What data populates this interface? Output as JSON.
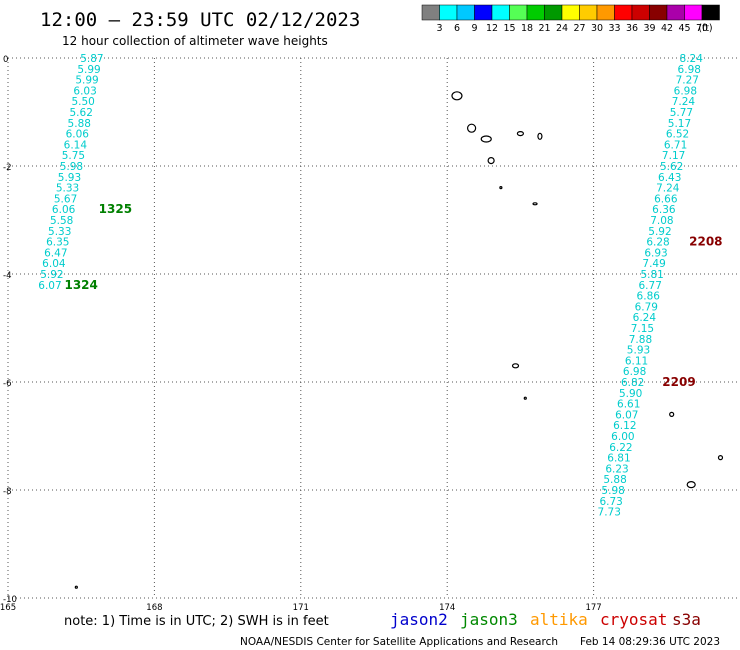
{
  "header": {
    "title": "12:00 — 23:59 UTC 02/12/2023",
    "subtitle": "12 hour collection of altimeter wave heights"
  },
  "colorbar": {
    "colors": [
      "#808080",
      "#00ffff",
      "#00c8ff",
      "#0000ff",
      "#00ffff",
      "#55ff55",
      "#00cc00",
      "#009900",
      "#ffff00",
      "#ffcc00",
      "#ff9900",
      "#ff0000",
      "#cc0000",
      "#880000",
      "#aa00aa",
      "#ff00ff",
      "#000000"
    ],
    "labels": [
      "3",
      "6",
      "9",
      "12",
      "15",
      "18",
      "21",
      "24",
      "27",
      "30",
      "33",
      "36",
      "39",
      "42",
      "45",
      "70"
    ],
    "unit": "(ft)"
  },
  "chart_data": {
    "type": "scatter",
    "xlabel": "",
    "ylabel": "",
    "xlim": [
      165,
      180
    ],
    "ylim": [
      -10,
      0
    ],
    "grid": true,
    "x_ticks": [
      "165",
      "168",
      "171",
      "174",
      "177"
    ],
    "y_ticks": [
      "0",
      "-2",
      "-4",
      "-6",
      "-8",
      "-10"
    ],
    "series": [
      {
        "name": "track west",
        "color": "#00cccc",
        "points": [
          {
            "x": 166.72,
            "y": 0.0,
            "v": "5.87"
          },
          {
            "x": 166.66,
            "y": -0.2,
            "v": "5.99"
          },
          {
            "x": 166.62,
            "y": -0.4,
            "v": "5.99"
          },
          {
            "x": 166.58,
            "y": -0.6,
            "v": "6.03"
          },
          {
            "x": 166.54,
            "y": -0.8,
            "v": "5.50"
          },
          {
            "x": 166.5,
            "y": -1.0,
            "v": "5.62"
          },
          {
            "x": 166.46,
            "y": -1.2,
            "v": "5.88"
          },
          {
            "x": 166.42,
            "y": -1.4,
            "v": "6.06"
          },
          {
            "x": 166.38,
            "y": -1.6,
            "v": "6.14"
          },
          {
            "x": 166.34,
            "y": -1.8,
            "v": "5.75"
          },
          {
            "x": 166.3,
            "y": -2.0,
            "v": "5.98"
          },
          {
            "x": 166.26,
            "y": -2.2,
            "v": "5.93"
          },
          {
            "x": 166.22,
            "y": -2.4,
            "v": "5.33"
          },
          {
            "x": 166.18,
            "y": -2.6,
            "v": "5.67"
          },
          {
            "x": 166.14,
            "y": -2.8,
            "v": "6.06"
          },
          {
            "x": 166.1,
            "y": -3.0,
            "v": "5.58"
          },
          {
            "x": 166.06,
            "y": -3.2,
            "v": "5.33"
          },
          {
            "x": 166.02,
            "y": -3.4,
            "v": "6.35"
          },
          {
            "x": 165.98,
            "y": -3.6,
            "v": "6.47"
          },
          {
            "x": 165.94,
            "y": -3.8,
            "v": "6.04"
          },
          {
            "x": 165.9,
            "y": -4.0,
            "v": "5.92"
          },
          {
            "x": 165.86,
            "y": -4.2,
            "v": "6.07"
          }
        ]
      },
      {
        "name": "track east",
        "color": "#00cccc",
        "points": [
          {
            "x": 179.0,
            "y": 0.0,
            "v": "8.24"
          },
          {
            "x": 178.96,
            "y": -0.2,
            "v": "6.98"
          },
          {
            "x": 178.92,
            "y": -0.4,
            "v": "7.27"
          },
          {
            "x": 178.88,
            "y": -0.6,
            "v": "6.98"
          },
          {
            "x": 178.84,
            "y": -0.8,
            "v": "7.24"
          },
          {
            "x": 178.8,
            "y": -1.0,
            "v": "5.77"
          },
          {
            "x": 178.76,
            "y": -1.2,
            "v": "5.17"
          },
          {
            "x": 178.72,
            "y": -1.4,
            "v": "6.52"
          },
          {
            "x": 178.68,
            "y": -1.6,
            "v": "6.71"
          },
          {
            "x": 178.64,
            "y": -1.8,
            "v": "7.17"
          },
          {
            "x": 178.6,
            "y": -2.0,
            "v": "5.62"
          },
          {
            "x": 178.56,
            "y": -2.2,
            "v": "6.43"
          },
          {
            "x": 178.52,
            "y": -2.4,
            "v": "7.24"
          },
          {
            "x": 178.48,
            "y": -2.6,
            "v": "6.66"
          },
          {
            "x": 178.44,
            "y": -2.8,
            "v": "6.36"
          },
          {
            "x": 178.4,
            "y": -3.0,
            "v": "7.08"
          },
          {
            "x": 178.36,
            "y": -3.2,
            "v": "5.92"
          },
          {
            "x": 178.32,
            "y": -3.4,
            "v": "6.28"
          },
          {
            "x": 178.28,
            "y": -3.6,
            "v": "6.93"
          },
          {
            "x": 178.24,
            "y": -3.8,
            "v": "7.49"
          },
          {
            "x": 178.2,
            "y": -4.0,
            "v": "5.81"
          },
          {
            "x": 178.16,
            "y": -4.2,
            "v": "6.77"
          },
          {
            "x": 178.12,
            "y": -4.4,
            "v": "6.86"
          },
          {
            "x": 178.08,
            "y": -4.6,
            "v": "6.79"
          },
          {
            "x": 178.04,
            "y": -4.8,
            "v": "6.24"
          },
          {
            "x": 178.0,
            "y": -5.0,
            "v": "7.15"
          },
          {
            "x": 177.96,
            "y": -5.2,
            "v": "7.88"
          },
          {
            "x": 177.92,
            "y": -5.4,
            "v": "5.93"
          },
          {
            "x": 177.88,
            "y": -5.6,
            "v": "6.11"
          },
          {
            "x": 177.84,
            "y": -5.8,
            "v": "6.98"
          },
          {
            "x": 177.8,
            "y": -6.0,
            "v": "6.82"
          },
          {
            "x": 177.76,
            "y": -6.2,
            "v": "5.90"
          },
          {
            "x": 177.72,
            "y": -6.4,
            "v": "6.61"
          },
          {
            "x": 177.68,
            "y": -6.6,
            "v": "6.07"
          },
          {
            "x": 177.64,
            "y": -6.8,
            "v": "6.12"
          },
          {
            "x": 177.6,
            "y": -7.0,
            "v": "6.00"
          },
          {
            "x": 177.56,
            "y": -7.2,
            "v": "6.22"
          },
          {
            "x": 177.52,
            "y": -7.4,
            "v": "6.81"
          },
          {
            "x": 177.48,
            "y": -7.6,
            "v": "6.23"
          },
          {
            "x": 177.44,
            "y": -7.8,
            "v": "5.88"
          },
          {
            "x": 177.4,
            "y": -8.0,
            "v": "5.98"
          },
          {
            "x": 177.36,
            "y": -8.2,
            "v": "6.73"
          },
          {
            "x": 177.32,
            "y": -8.4,
            "v": "7.73"
          }
        ]
      }
    ],
    "time_labels": [
      {
        "text": "1325",
        "color": "#008000"
      },
      {
        "text": "1324",
        "color": "#008000"
      },
      {
        "text": "2208",
        "color": "#880000"
      },
      {
        "text": "2209",
        "color": "#880000"
      }
    ]
  },
  "footer": {
    "note": "note:  1) Time is in UTC; 2) SWH is in feet",
    "satellites": [
      {
        "name": "jason2",
        "color": "#0000cc"
      },
      {
        "name": "jason3",
        "color": "#008800"
      },
      {
        "name": "altika",
        "color": "#ff9900"
      },
      {
        "name": "cryosat",
        "color": "#cc0000"
      },
      {
        "name": "s3a",
        "color": "#880000"
      }
    ],
    "credit": "NOAA/NESDIS Center for Satellite Applications and Research",
    "timestamp": "Feb 14 08:29:36 UTC 2023"
  }
}
